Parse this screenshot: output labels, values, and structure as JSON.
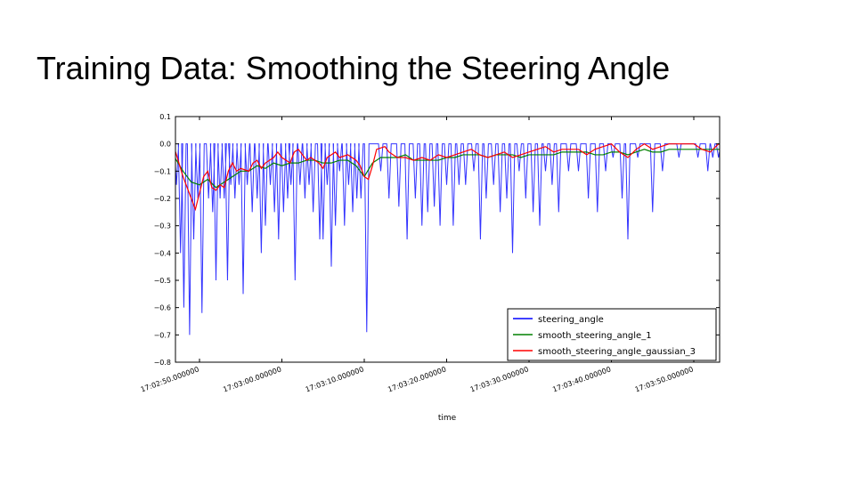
{
  "slide": {
    "title": "Training Data: Smoothing the Steering Angle"
  },
  "colors": {
    "steering_angle": "#0000ff",
    "smooth_steering_angle_1": "#008000",
    "smooth_steering_angle_gaussian_3": "#ff0000"
  },
  "chart_data": {
    "type": "line",
    "title": "",
    "xlabel": "time",
    "ylabel": "",
    "ylim": [
      -0.8,
      0.1
    ],
    "xlim": [
      "17:02:45.000000",
      "17:03:55.000000"
    ],
    "y_ticks": [
      "0.1",
      "0.0",
      "−0.1",
      "−0.2",
      "−0.3",
      "−0.4",
      "−0.5",
      "−0.6",
      "−0.7",
      "−0.8"
    ],
    "y_tick_values": [
      0.1,
      0.0,
      -0.1,
      -0.2,
      -0.3,
      -0.4,
      -0.5,
      -0.6,
      -0.7,
      -0.8
    ],
    "x_ticks": [
      "17:02:50.000000",
      "17:03:00.000000",
      "17:03:10.000000",
      "17:03:20.000000",
      "17:03:30.000000",
      "17:03:40.000000",
      "17:03:50.000000"
    ],
    "x_tick_seconds_after_17_02_50": [
      0,
      10,
      20,
      30,
      40,
      50,
      60
    ],
    "legend_position": "lower-right",
    "grid": false,
    "series": [
      {
        "name": "steering_angle",
        "note": "sampled values; spikes from 0.0 down to listed minima",
        "spikes": [
          {
            "t": -2.8,
            "v": -0.15
          },
          {
            "t": -2.3,
            "v": -0.4
          },
          {
            "t": -1.9,
            "v": -0.6
          },
          {
            "t": -1.2,
            "v": -0.7
          },
          {
            "t": -0.7,
            "v": -0.35
          },
          {
            "t": -0.2,
            "v": -0.2
          },
          {
            "t": 0.3,
            "v": -0.62
          },
          {
            "t": 1.1,
            "v": -0.2
          },
          {
            "t": 1.6,
            "v": -0.25
          },
          {
            "t": 2.0,
            "v": -0.5
          },
          {
            "t": 2.5,
            "v": -0.2
          },
          {
            "t": 3.0,
            "v": -0.2
          },
          {
            "t": 3.4,
            "v": -0.5
          },
          {
            "t": 3.8,
            "v": -0.15
          },
          {
            "t": 4.3,
            "v": -0.2
          },
          {
            "t": 4.8,
            "v": -0.15
          },
          {
            "t": 5.3,
            "v": -0.55
          },
          {
            "t": 5.8,
            "v": -0.15
          },
          {
            "t": 6.4,
            "v": -0.25
          },
          {
            "t": 7.0,
            "v": -0.2
          },
          {
            "t": 7.5,
            "v": -0.4
          },
          {
            "t": 8.0,
            "v": -0.3
          },
          {
            "t": 8.6,
            "v": -0.15
          },
          {
            "t": 9.1,
            "v": -0.25
          },
          {
            "t": 9.6,
            "v": -0.35
          },
          {
            "t": 10.2,
            "v": -0.25
          },
          {
            "t": 10.7,
            "v": -0.2
          },
          {
            "t": 11.1,
            "v": -0.15
          },
          {
            "t": 11.6,
            "v": -0.5
          },
          {
            "t": 12.2,
            "v": -0.15
          },
          {
            "t": 12.8,
            "v": -0.2
          },
          {
            "t": 13.3,
            "v": -0.15
          },
          {
            "t": 13.8,
            "v": -0.25
          },
          {
            "t": 14.6,
            "v": -0.35
          },
          {
            "t": 15.0,
            "v": -0.35
          },
          {
            "t": 15.5,
            "v": -0.15
          },
          {
            "t": 16.0,
            "v": -0.45
          },
          {
            "t": 16.5,
            "v": -0.3
          },
          {
            "t": 17.0,
            "v": -0.1
          },
          {
            "t": 17.6,
            "v": -0.3
          },
          {
            "t": 18.1,
            "v": -0.15
          },
          {
            "t": 18.6,
            "v": -0.25
          },
          {
            "t": 19.1,
            "v": -0.2
          },
          {
            "t": 19.6,
            "v": -0.2
          },
          {
            "t": 20.3,
            "v": -0.69
          },
          {
            "t": 22.0,
            "v": -0.1
          },
          {
            "t": 23.0,
            "v": -0.2
          },
          {
            "t": 24.2,
            "v": -0.23
          },
          {
            "t": 25.2,
            "v": -0.35
          },
          {
            "t": 26.2,
            "v": -0.2
          },
          {
            "t": 27.0,
            "v": -0.3
          },
          {
            "t": 27.7,
            "v": -0.25
          },
          {
            "t": 28.5,
            "v": -0.23
          },
          {
            "t": 29.2,
            "v": -0.3
          },
          {
            "t": 30.0,
            "v": -0.15
          },
          {
            "t": 30.8,
            "v": -0.3
          },
          {
            "t": 31.5,
            "v": -0.15
          },
          {
            "t": 32.3,
            "v": -0.15
          },
          {
            "t": 33.3,
            "v": -0.1
          },
          {
            "t": 34.1,
            "v": -0.35
          },
          {
            "t": 34.8,
            "v": -0.2
          },
          {
            "t": 35.7,
            "v": -0.15
          },
          {
            "t": 36.5,
            "v": -0.25
          },
          {
            "t": 37.3,
            "v": -0.2
          },
          {
            "t": 38.0,
            "v": -0.4
          },
          {
            "t": 38.8,
            "v": -0.1
          },
          {
            "t": 39.6,
            "v": -0.2
          },
          {
            "t": 40.5,
            "v": -0.25
          },
          {
            "t": 41.3,
            "v": -0.3
          },
          {
            "t": 42.0,
            "v": -0.1
          },
          {
            "t": 42.8,
            "v": -0.15
          },
          {
            "t": 43.6,
            "v": -0.25
          },
          {
            "t": 44.8,
            "v": -0.1
          },
          {
            "t": 46.0,
            "v": -0.1
          },
          {
            "t": 47.2,
            "v": -0.2
          },
          {
            "t": 48.3,
            "v": -0.25
          },
          {
            "t": 49.3,
            "v": -0.1
          },
          {
            "t": 50.2,
            "v": -0.05
          },
          {
            "t": 51.3,
            "v": -0.2
          },
          {
            "t": 52.0,
            "v": -0.35
          },
          {
            "t": 53.2,
            "v": -0.05
          },
          {
            "t": 55.0,
            "v": -0.25
          },
          {
            "t": 56.2,
            "v": -0.1
          },
          {
            "t": 58.2,
            "v": -0.05
          },
          {
            "t": 60.5,
            "v": -0.05
          },
          {
            "t": 61.7,
            "v": -0.1
          },
          {
            "t": 62.3,
            "v": -0.05
          },
          {
            "t": 63.0,
            "v": -0.05
          },
          {
            "t": 63.8,
            "v": -0.2
          },
          {
            "t": 64.1,
            "v": -0.2
          },
          {
            "t": 64.5,
            "v": -0.05
          },
          {
            "t": 66.8,
            "v": -0.3
          }
        ]
      },
      {
        "name": "smooth_steering_angle_1",
        "points": [
          [
            -3.0,
            -0.05
          ],
          [
            -2.0,
            -0.1
          ],
          [
            -1.0,
            -0.14
          ],
          [
            0.0,
            -0.15
          ],
          [
            1.0,
            -0.13
          ],
          [
            2.0,
            -0.16
          ],
          [
            3.0,
            -0.14
          ],
          [
            4.0,
            -0.12
          ],
          [
            5.0,
            -0.1
          ],
          [
            6.0,
            -0.1
          ],
          [
            7.0,
            -0.08
          ],
          [
            8.0,
            -0.09
          ],
          [
            9.0,
            -0.07
          ],
          [
            10.0,
            -0.08
          ],
          [
            11.0,
            -0.07
          ],
          [
            12.0,
            -0.07
          ],
          [
            13.0,
            -0.06
          ],
          [
            14.0,
            -0.06
          ],
          [
            15.0,
            -0.07
          ],
          [
            16.0,
            -0.07
          ],
          [
            17.0,
            -0.06
          ],
          [
            18.0,
            -0.06
          ],
          [
            19.0,
            -0.08
          ],
          [
            20.0,
            -0.12
          ],
          [
            21.0,
            -0.07
          ],
          [
            22.0,
            -0.05
          ],
          [
            23.0,
            -0.05
          ],
          [
            24.0,
            -0.05
          ],
          [
            25.0,
            -0.04
          ],
          [
            26.0,
            -0.06
          ],
          [
            27.0,
            -0.06
          ],
          [
            28.0,
            -0.06
          ],
          [
            29.0,
            -0.06
          ],
          [
            30.0,
            -0.05
          ],
          [
            31.0,
            -0.05
          ],
          [
            32.0,
            -0.04
          ],
          [
            33.0,
            -0.04
          ],
          [
            34.0,
            -0.04
          ],
          [
            35.0,
            -0.05
          ],
          [
            36.0,
            -0.04
          ],
          [
            37.0,
            -0.04
          ],
          [
            38.0,
            -0.04
          ],
          [
            39.0,
            -0.05
          ],
          [
            40.0,
            -0.04
          ],
          [
            41.0,
            -0.04
          ],
          [
            42.0,
            -0.04
          ],
          [
            43.0,
            -0.04
          ],
          [
            44.0,
            -0.03
          ],
          [
            45.0,
            -0.03
          ],
          [
            46.0,
            -0.03
          ],
          [
            47.0,
            -0.03
          ],
          [
            48.0,
            -0.04
          ],
          [
            49.0,
            -0.04
          ],
          [
            50.0,
            -0.03
          ],
          [
            51.0,
            -0.03
          ],
          [
            52.0,
            -0.04
          ],
          [
            53.0,
            -0.03
          ],
          [
            54.0,
            -0.02
          ],
          [
            55.0,
            -0.03
          ],
          [
            56.0,
            -0.03
          ],
          [
            57.0,
            -0.02
          ],
          [
            58.0,
            -0.02
          ],
          [
            59.0,
            -0.02
          ],
          [
            60.0,
            -0.02
          ],
          [
            61.0,
            -0.02
          ],
          [
            62.0,
            -0.02
          ],
          [
            63.0,
            -0.02
          ],
          [
            64.0,
            -0.03
          ],
          [
            65.0,
            -0.02
          ],
          [
            66.0,
            -0.02
          ],
          [
            67.0,
            -0.02
          ]
        ]
      },
      {
        "name": "smooth_steering_angle_gaussian_3",
        "points": [
          [
            -3.0,
            -0.02
          ],
          [
            -2.0,
            -0.12
          ],
          [
            -1.0,
            -0.2
          ],
          [
            -0.5,
            -0.24
          ],
          [
            0.0,
            -0.18
          ],
          [
            0.5,
            -0.12
          ],
          [
            1.0,
            -0.1
          ],
          [
            1.5,
            -0.16
          ],
          [
            2.0,
            -0.17
          ],
          [
            2.5,
            -0.15
          ],
          [
            3.0,
            -0.16
          ],
          [
            3.5,
            -0.1
          ],
          [
            4.0,
            -0.07
          ],
          [
            4.5,
            -0.1
          ],
          [
            5.0,
            -0.09
          ],
          [
            6.0,
            -0.1
          ],
          [
            6.5,
            -0.07
          ],
          [
            7.0,
            -0.06
          ],
          [
            7.5,
            -0.09
          ],
          [
            8.0,
            -0.07
          ],
          [
            9.0,
            -0.05
          ],
          [
            9.5,
            -0.03
          ],
          [
            10.0,
            -0.05
          ],
          [
            11.0,
            -0.07
          ],
          [
            11.5,
            -0.03
          ],
          [
            12.0,
            -0.02
          ],
          [
            13.0,
            -0.06
          ],
          [
            13.5,
            -0.05
          ],
          [
            14.5,
            -0.07
          ],
          [
            15.0,
            -0.09
          ],
          [
            15.5,
            -0.05
          ],
          [
            16.5,
            -0.03
          ],
          [
            17.0,
            -0.05
          ],
          [
            18.0,
            -0.04
          ],
          [
            19.0,
            -0.06
          ],
          [
            19.5,
            -0.08
          ],
          [
            20.0,
            -0.12
          ],
          [
            20.5,
            -0.13
          ],
          [
            21.0,
            -0.08
          ],
          [
            21.5,
            -0.02
          ],
          [
            22.5,
            -0.01
          ],
          [
            23.0,
            -0.03
          ],
          [
            24.0,
            -0.05
          ],
          [
            25.0,
            -0.05
          ],
          [
            26.0,
            -0.06
          ],
          [
            27.0,
            -0.05
          ],
          [
            28.0,
            -0.06
          ],
          [
            29.0,
            -0.04
          ],
          [
            30.0,
            -0.05
          ],
          [
            31.0,
            -0.04
          ],
          [
            32.0,
            -0.03
          ],
          [
            33.0,
            -0.02
          ],
          [
            34.0,
            -0.04
          ],
          [
            35.0,
            -0.05
          ],
          [
            36.0,
            -0.04
          ],
          [
            37.0,
            -0.03
          ],
          [
            38.0,
            -0.05
          ],
          [
            39.0,
            -0.04
          ],
          [
            40.0,
            -0.03
          ],
          [
            41.0,
            -0.02
          ],
          [
            42.0,
            -0.01
          ],
          [
            43.0,
            -0.03
          ],
          [
            44.0,
            -0.02
          ],
          [
            45.0,
            -0.02
          ],
          [
            46.0,
            -0.02
          ],
          [
            47.0,
            -0.04
          ],
          [
            48.0,
            -0.02
          ],
          [
            49.0,
            -0.01
          ],
          [
            50.0,
            0.0
          ],
          [
            51.0,
            -0.03
          ],
          [
            52.0,
            -0.05
          ],
          [
            53.0,
            -0.02
          ],
          [
            54.0,
            0.0
          ],
          [
            55.0,
            -0.02
          ],
          [
            56.0,
            -0.01
          ],
          [
            57.0,
            0.0
          ],
          [
            58.0,
            0.0
          ],
          [
            59.0,
            0.0
          ],
          [
            60.0,
            0.0
          ],
          [
            61.0,
            -0.02
          ],
          [
            62.0,
            -0.03
          ],
          [
            63.0,
            0.0
          ],
          [
            64.0,
            -0.02
          ],
          [
            65.0,
            0.0
          ],
          [
            66.0,
            0.0
          ],
          [
            67.0,
            -0.04
          ]
        ]
      }
    ]
  }
}
